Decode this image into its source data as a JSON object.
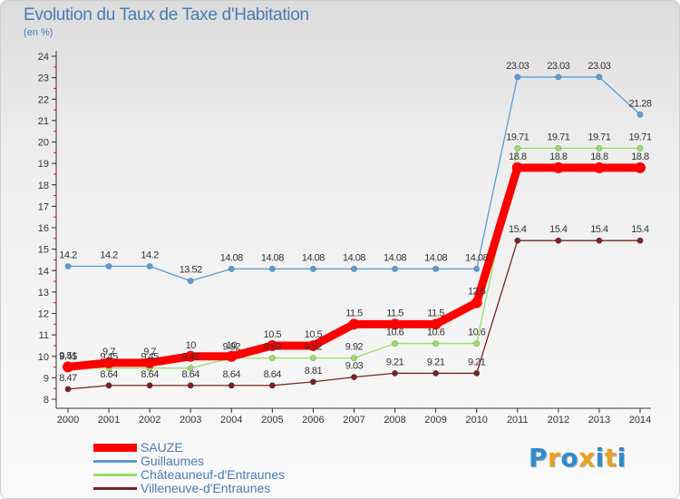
{
  "title": "Evolution du Taux de Taxe d'Habitation",
  "unit_label": "(en %)",
  "chart_data": {
    "type": "line",
    "x": [
      "2000",
      "2001",
      "2002",
      "2003",
      "2004",
      "2005",
      "2006",
      "2007",
      "2008",
      "2009",
      "2010",
      "2011",
      "2012",
      "2013",
      "2014"
    ],
    "ylim": [
      8,
      24
    ],
    "yticks": [
      8,
      9,
      10,
      11,
      12,
      13,
      14,
      15,
      16,
      17,
      18,
      19,
      20,
      21,
      22,
      23,
      24
    ],
    "grid": false,
    "legend_position": "bottom-left",
    "series": [
      {
        "name": "SAUZE",
        "color": "#ff0000",
        "values": [
          9.51,
          9.7,
          9.7,
          10,
          10,
          10.5,
          10.5,
          11.5,
          11.5,
          11.5,
          12.5,
          18.8,
          18.8,
          18.8,
          18.8
        ],
        "labels": [
          "9.51",
          "9.7",
          "9.7",
          "10",
          "10",
          "10.5",
          "10.5",
          "11.5",
          "11.5",
          "11.5",
          "12.5",
          "18.8",
          "18.8",
          "18.8",
          "18.8"
        ]
      },
      {
        "name": "Guillaumes",
        "color": "#5b9bd5",
        "values": [
          14.2,
          14.2,
          14.2,
          13.52,
          14.08,
          14.08,
          14.08,
          14.08,
          14.08,
          14.08,
          14.08,
          23.03,
          23.03,
          23.03,
          21.28
        ],
        "labels": [
          "14.2",
          "14.2",
          "14.2",
          "13.52",
          "14.08",
          "14.08",
          "14.08",
          "14.08",
          "14.08",
          "14.08",
          "14.08",
          "23.03",
          "23.03",
          "23.03",
          "21.28"
        ]
      },
      {
        "name": "Châteauneuf-d'Entraunes",
        "color": "#99dd66",
        "values": [
          9.45,
          9.45,
          9.45,
          9.45,
          9.92,
          9.92,
          9.92,
          9.92,
          10.6,
          10.6,
          10.6,
          19.71,
          19.71,
          19.71,
          19.71
        ],
        "labels": [
          "9.45",
          "9.45",
          "9.45",
          "9.45",
          "9.92",
          "9.92",
          "9.92",
          "9.92",
          "10.6",
          "10.6",
          "10.6",
          "19.71",
          "19.71",
          "19.71",
          "19.71"
        ]
      },
      {
        "name": "Villeneuve-d'Entraunes",
        "color": "#7a2222",
        "values": [
          8.47,
          8.64,
          8.64,
          8.64,
          8.64,
          8.64,
          8.81,
          9.03,
          9.21,
          9.21,
          9.21,
          15.4,
          15.4,
          15.4,
          15.4
        ],
        "labels": [
          "8.47",
          "8.64",
          "8.64",
          "8.64",
          "8.64",
          "8.64",
          "8.81",
          "9.03",
          "9.21",
          "9.21",
          "9.21",
          "15.4",
          "15.4",
          "15.4",
          "15.4"
        ]
      }
    ]
  },
  "logo": {
    "text": "Proxiti",
    "colors": [
      "#2e8bd0",
      "#e8a020",
      "#2e8bd0",
      "#e8a020",
      "#2e8bd0",
      "#e8a020",
      "#2e8bd0"
    ]
  }
}
